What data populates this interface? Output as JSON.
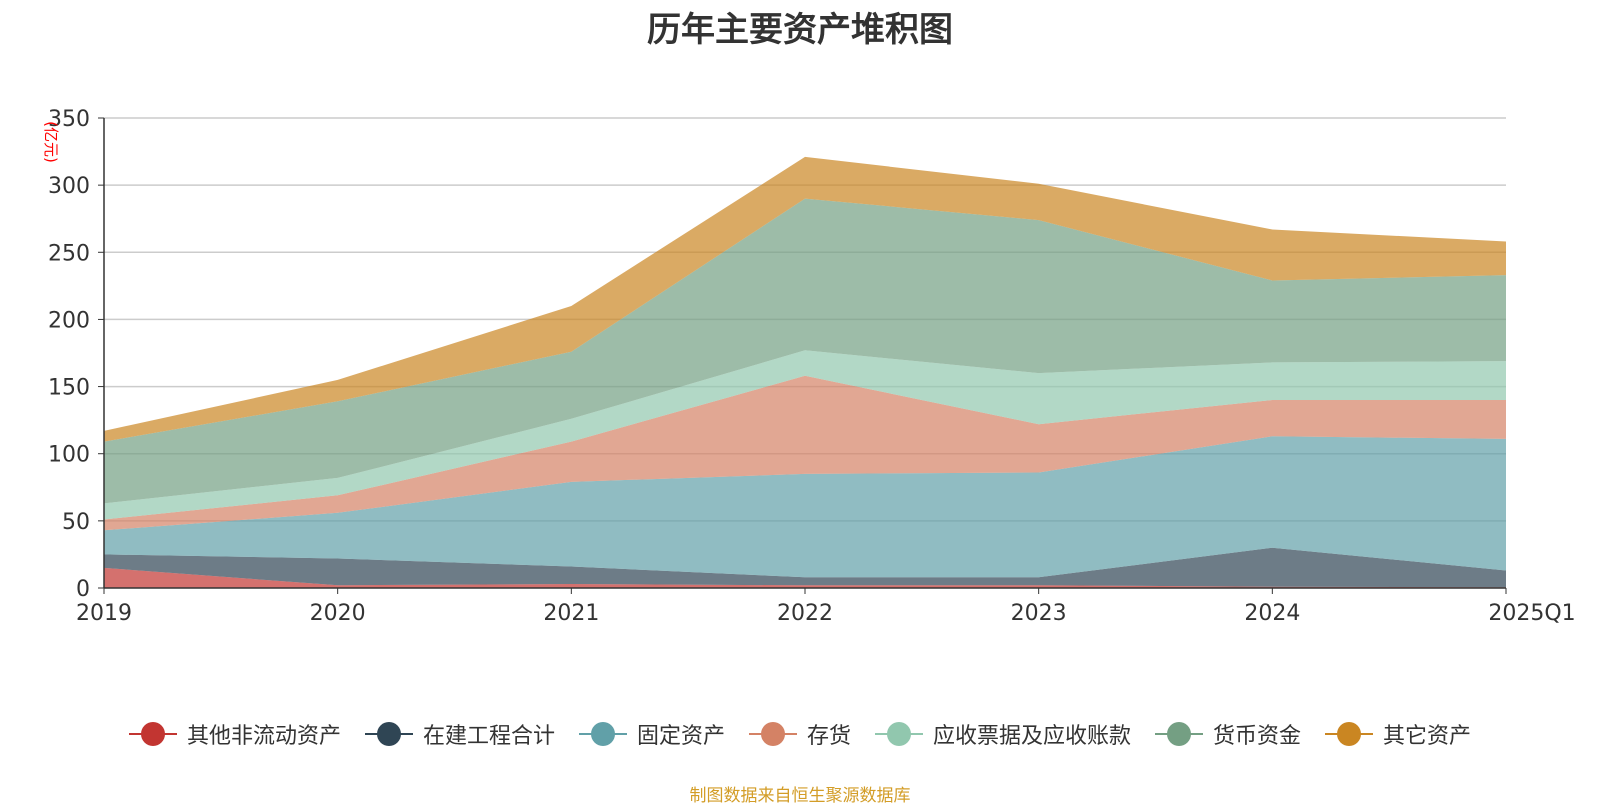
{
  "chart_data": {
    "type": "area",
    "stacked": true,
    "title": "历年主要资产堆积图",
    "ylabel": "(亿元)",
    "xlabel": "",
    "ylim": [
      0,
      350
    ],
    "yticks": [
      "0",
      "50",
      "100",
      "150",
      "200",
      "250",
      "300",
      "350"
    ],
    "categories": [
      "2019",
      "2020",
      "2021",
      "2022",
      "2023",
      "2024",
      "2025Q1"
    ],
    "series": [
      {
        "name": "其他非流动资产",
        "color": "#c23531",
        "values": [
          15,
          2,
          3,
          2,
          2,
          1,
          0.5
        ]
      },
      {
        "name": "在建工程合计",
        "color": "#2f4554",
        "values": [
          10,
          20,
          13,
          6,
          6,
          29,
          12.5
        ]
      },
      {
        "name": "固定资产",
        "color": "#61a0a8",
        "values": [
          18,
          34,
          63,
          77,
          78,
          83,
          98
        ]
      },
      {
        "name": "存货",
        "color": "#d48265",
        "values": [
          8,
          13,
          30,
          73,
          36,
          27,
          29
        ]
      },
      {
        "name": "应收票据及应收账款",
        "color": "#91c7ae",
        "values": [
          12,
          13,
          17,
          19,
          38,
          28,
          29
        ]
      },
      {
        "name": "货币资金",
        "color": "#749f83",
        "values": [
          46,
          57,
          50,
          113,
          114,
          61,
          64
        ]
      },
      {
        "name": "其它资产",
        "color": "#ca8622",
        "values": [
          8,
          16,
          34,
          31,
          27,
          38,
          25
        ]
      }
    ],
    "legend_position": "bottom",
    "grid": true
  },
  "source_text": "制图数据来自恒生聚源数据库",
  "source_color": "#d39d27",
  "axis_color": "#333333",
  "unit_color": "#ff0000"
}
